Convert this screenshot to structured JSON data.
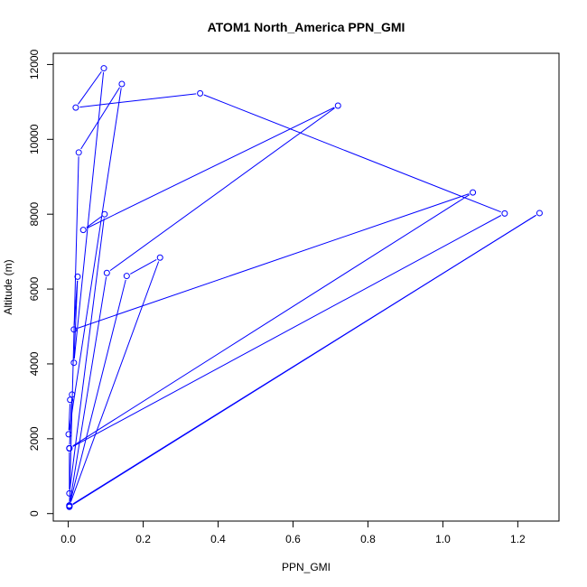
{
  "chart_data": {
    "type": "line",
    "title": "ATOM1 North_America PPN_GMI",
    "xlabel": "PPN_GMI",
    "ylabel": "Altitude (m)",
    "xlim": [
      -0.04,
      1.31
    ],
    "ylim": [
      -200,
      12300
    ],
    "xticks": [
      0.0,
      0.2,
      0.4,
      0.6,
      0.8,
      1.0,
      1.2
    ],
    "xtick_labels": [
      "0.0",
      "0.2",
      "0.4",
      "0.6",
      "0.8",
      "1.0",
      "1.2"
    ],
    "yticks": [
      0,
      2000,
      4000,
      6000,
      8000,
      10000,
      12000
    ],
    "ytick_labels": [
      "0",
      "2000",
      "4000",
      "6000",
      "8000",
      "10000",
      "12000"
    ],
    "grid": false,
    "series": [
      {
        "color": "#0000ff",
        "x": [
          0.003,
          0.245,
          0.156,
          0.003,
          0.103,
          0.72,
          0.04,
          0.097,
          0.003,
          0.003,
          1.08,
          0.015,
          0.025,
          0.015,
          0.095,
          0.02,
          0.352,
          1.165,
          0.003,
          0.01,
          0.005,
          0.001,
          0.143,
          0.028,
          0.003,
          1.258,
          0.003
        ],
        "y": [
          210,
          6840,
          6350,
          220,
          6430,
          10900,
          7580,
          8000,
          540,
          1750,
          8580,
          4920,
          6330,
          4030,
          11900,
          10850,
          11230,
          8020,
          1740,
          3180,
          3040,
          2120,
          11480,
          9650,
          180,
          8030,
          200
        ]
      }
    ]
  }
}
